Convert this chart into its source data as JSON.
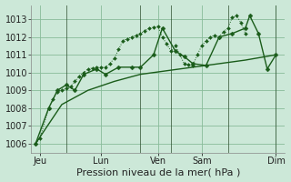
{
  "bg_color": "#cce8d8",
  "plot_bg": "#cce8d8",
  "grid_color": "#88bb99",
  "line_color": "#1a5c1a",
  "ylim": [
    1005.5,
    1013.8
  ],
  "yticks": [
    1006,
    1007,
    1008,
    1009,
    1010,
    1011,
    1012,
    1013
  ],
  "xlabel": "Pression niveau de la mer( hPa )",
  "xlabel_fontsize": 8,
  "tick_fontsize": 7,
  "series1_x": [
    0,
    0.5,
    1.5,
    2,
    2.5,
    3,
    3.5,
    4,
    4.5,
    5,
    5.5,
    6,
    6.5,
    7,
    7.5,
    8,
    8.5,
    9,
    9.5,
    10,
    10.5,
    11,
    11.5,
    12,
    12.5,
    13,
    13.5,
    14,
    14.5,
    15,
    15.5,
    16,
    16.5,
    17,
    17.5,
    18,
    18.5,
    19,
    19.5,
    20,
    20.5,
    21,
    21.5,
    22,
    22.5,
    23,
    23.5,
    24
  ],
  "series1_y": [
    1006.0,
    1006.3,
    1008.0,
    1008.5,
    1008.9,
    1009.0,
    1009.1,
    1009.2,
    1009.5,
    1009.8,
    1010.0,
    1010.2,
    1010.25,
    1010.3,
    1010.3,
    1010.3,
    1010.5,
    1010.8,
    1011.3,
    1011.8,
    1011.9,
    1012.0,
    1012.1,
    1012.2,
    1012.35,
    1012.5,
    1012.55,
    1012.6,
    1012.0,
    1011.6,
    1011.2,
    1011.5,
    1011.0,
    1010.5,
    1010.45,
    1010.4,
    1011.0,
    1011.5,
    1011.8,
    1012.0,
    1012.1,
    1012.0,
    1012.3,
    1012.5,
    1013.1,
    1013.2,
    1012.8,
    1012.2
  ],
  "series2_x": [
    0,
    1.5,
    2.5,
    3.5,
    4.5,
    5.5,
    7,
    8,
    9.5,
    11,
    12,
    13.5,
    14.5,
    16,
    17,
    18,
    19.5,
    21,
    22.5,
    24,
    24.5,
    25.5,
    26.5,
    27.5
  ],
  "series2_y": [
    1006.0,
    1008.0,
    1009.0,
    1009.3,
    1009.0,
    1009.9,
    1010.2,
    1009.9,
    1010.3,
    1010.3,
    1010.3,
    1011.0,
    1012.5,
    1011.2,
    1010.9,
    1010.5,
    1010.4,
    1012.0,
    1012.2,
    1012.5,
    1013.2,
    1012.2,
    1010.2,
    1011.0
  ],
  "series3_x": [
    0,
    3,
    6,
    9,
    12,
    15,
    18,
    21,
    24,
    27.5
  ],
  "series3_y": [
    1006.0,
    1008.2,
    1009.0,
    1009.5,
    1009.9,
    1010.1,
    1010.3,
    1010.5,
    1010.7,
    1011.0
  ],
  "vlines_x": [
    3.5,
    12,
    15.5,
    22,
    27.5
  ],
  "xtick_positions": [
    0.5,
    7.5,
    14,
    19,
    27.5
  ],
  "xtick_labels": [
    "Jeu",
    "Lun",
    "Ven",
    "Sam",
    "Dim"
  ]
}
